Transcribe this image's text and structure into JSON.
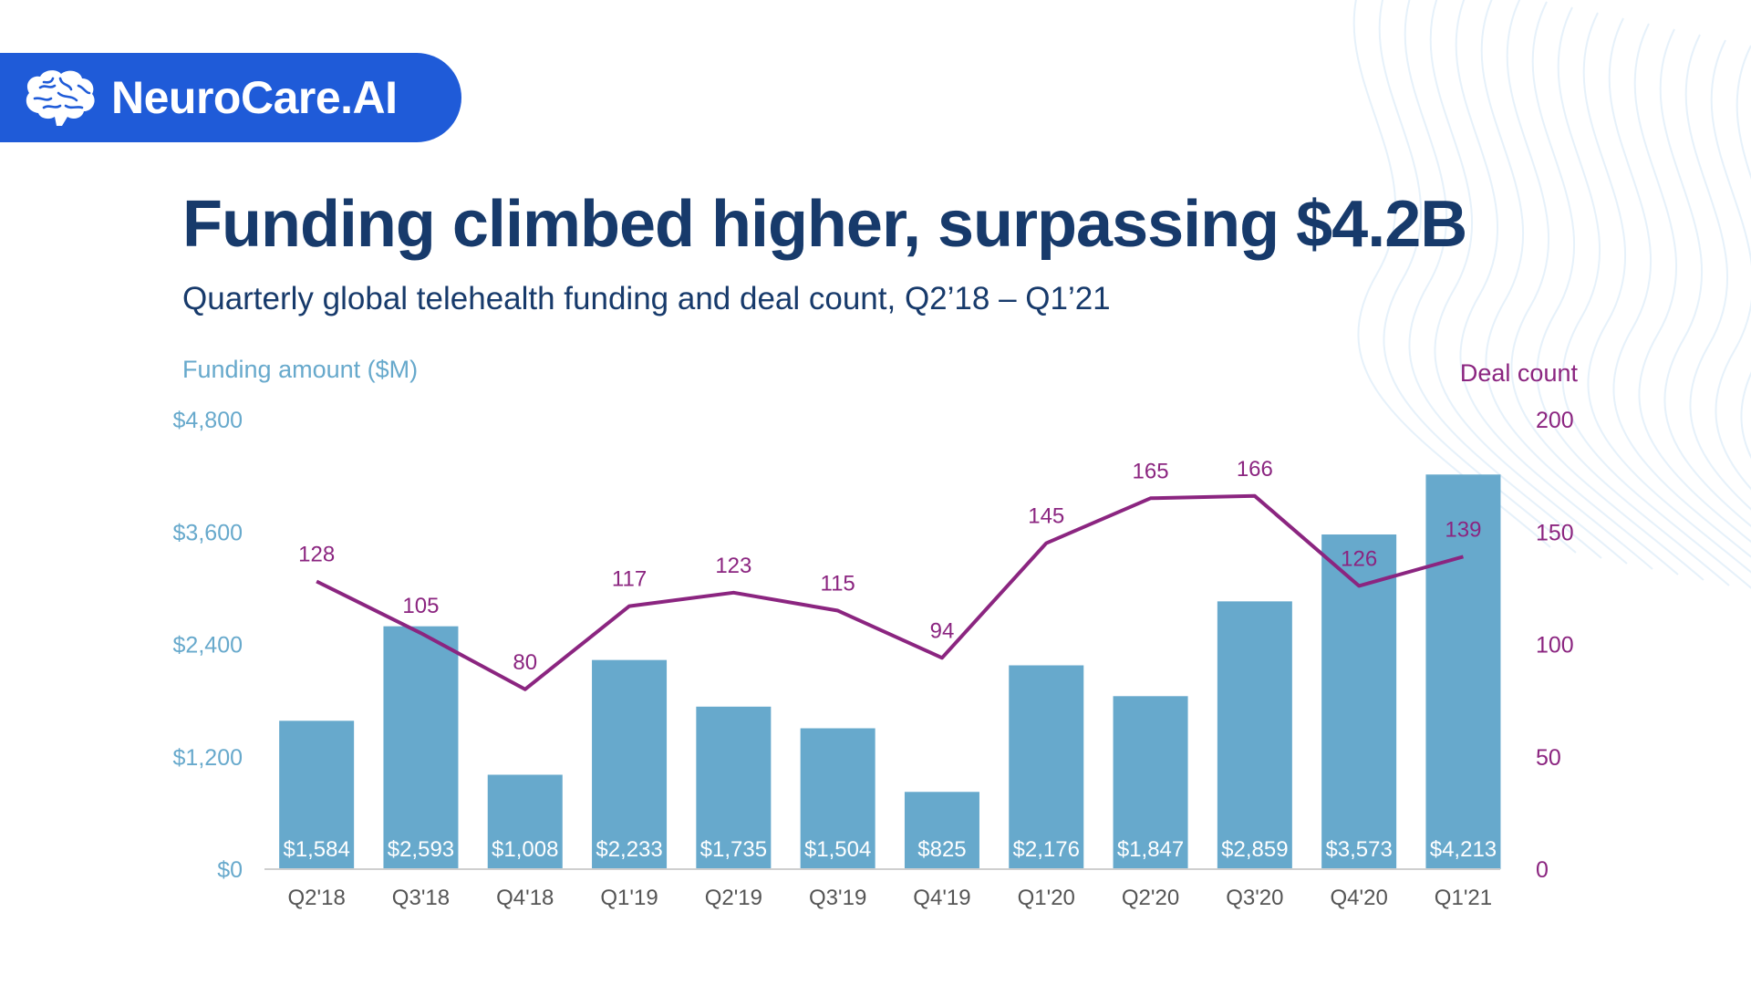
{
  "brand": {
    "name": "NeuroCare.AI",
    "color": "#1f5bd8"
  },
  "header": {
    "title": "Funding climbed higher, surpassing $4.2B",
    "subtitle": "Quarterly global telehealth funding and deal count, Q2’18 – Q1’21"
  },
  "colors": {
    "bars": "#67a9cc",
    "line": "#8b2580",
    "text": "#173a6b",
    "axis_left": "#67a9cc",
    "axis_right": "#8b2580",
    "tick_x": "#555555"
  },
  "chart_data": {
    "type": "bar",
    "title": "Funding climbed higher, surpassing $4.2B",
    "subtitle": "Quarterly global telehealth funding and deal count, Q2’18 – Q1’21",
    "categories": [
      "Q2'18",
      "Q3'18",
      "Q4'18",
      "Q1'19",
      "Q2'19",
      "Q3'19",
      "Q4'19",
      "Q1'20",
      "Q2'20",
      "Q3'20",
      "Q4'20",
      "Q1'21"
    ],
    "series": [
      {
        "type": "bar",
        "axis": "left",
        "values": [
          1584,
          2593,
          1008,
          2233,
          1735,
          1504,
          825,
          2176,
          1847,
          2859,
          3573,
          4213
        ],
        "labels": [
          "$1,584",
          "$2,593",
          "$1,008",
          "$2,233",
          "$1,735",
          "$1,504",
          "$825",
          "$2,176",
          "$1,847",
          "$2,859",
          "$3,573",
          "$4,213"
        ]
      },
      {
        "type": "line",
        "axis": "right",
        "values": [
          128,
          105,
          80,
          117,
          123,
          115,
          94,
          145,
          165,
          166,
          126,
          139
        ],
        "labels": [
          "128",
          "105",
          "80",
          "117",
          "123",
          "115",
          "94",
          "145",
          "165",
          "166",
          "126",
          "139"
        ]
      }
    ],
    "ylabel": "Funding amount ($M)",
    "ylim": [
      0,
      4800
    ],
    "yticks": [
      0,
      1200,
      2400,
      3600,
      4800
    ],
    "yticklabels": [
      "$0",
      "$1,200",
      "$2,400",
      "$3,600",
      "$4,800"
    ],
    "y2label": "Deal count",
    "y2lim": [
      0,
      200
    ],
    "y2ticks": [
      0,
      50,
      100,
      150,
      200
    ],
    "y2ticklabels": [
      "0",
      "50",
      "100",
      "150",
      "200"
    ],
    "grid": false
  }
}
